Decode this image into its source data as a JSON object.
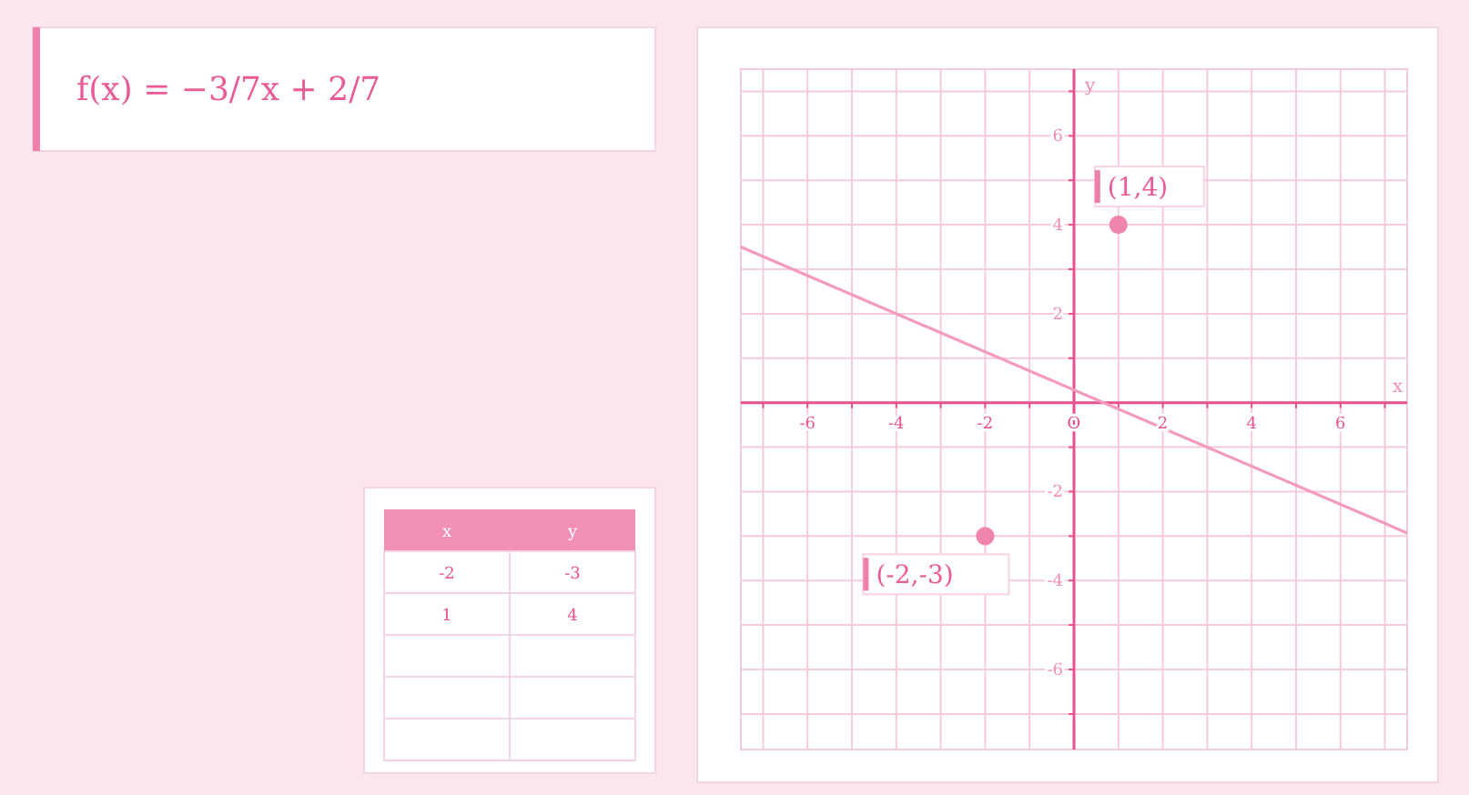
{
  "chart_data": [
    {
      "type": "other",
      "title": "f(x) = −3/7x + 2/7"
    },
    {
      "type": "line",
      "xlabel": "x",
      "ylabel": "y",
      "xlim": [
        -7.5,
        7.5
      ],
      "ylim": [
        -7.8,
        7.5
      ],
      "xticks": [
        {
          "value": -7,
          "label": null
        },
        -6,
        {
          "value": -5,
          "label": null
        },
        -4,
        {
          "value": -3,
          "label": null
        },
        -2,
        {
          "value": -1,
          "label": null
        },
        {
          "value": 0,
          "label": "O"
        },
        {
          "value": 1,
          "label": null
        },
        2,
        {
          "value": 3,
          "label": null
        },
        4,
        {
          "value": 5,
          "label": null
        },
        6,
        {
          "value": 7,
          "label": null
        }
      ],
      "yticks": [
        {
          "value": -7,
          "label": null
        },
        -6,
        {
          "value": -5,
          "label": null
        },
        -4,
        {
          "value": -3,
          "label": null
        },
        -2,
        {
          "value": -1,
          "label": null
        },
        {
          "value": 1,
          "label": null
        },
        2,
        {
          "value": 3,
          "label": null
        },
        4,
        {
          "value": 5,
          "label": null
        },
        6,
        {
          "value": 7,
          "label": null
        }
      ],
      "grid": true,
      "series": [
        {
          "color": "#f29bbf",
          "x": [
            -7.5,
            7.5
          ],
          "values": [
            3.5,
            -2.93
          ]
        },
        {
          "type": "scatter",
          "marker": "circle",
          "color": "#ef84ad",
          "x": [
            -2,
            1
          ],
          "values": [
            -3,
            4
          ]
        }
      ],
      "annotations": [
        {
          "text": "(1,4)",
          "x": 1,
          "y": 4
        },
        {
          "text": "(-2,-3)",
          "x": -2,
          "y": -3
        }
      ]
    },
    {
      "type": "other",
      "annotations": [
        "x",
        "y",
        "-2",
        "-3",
        "1",
        "4"
      ]
    }
  ]
}
